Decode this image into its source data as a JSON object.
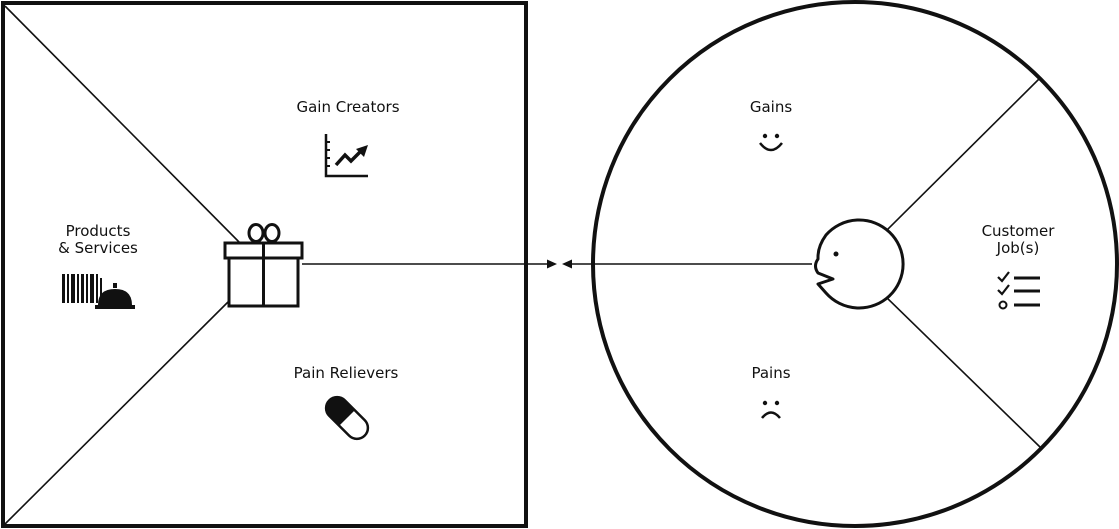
{
  "value_map": {
    "gain_creators": "Gain Creators",
    "products_line1": "Products",
    "products_line2": "& Services",
    "pain_relievers": "Pain Relievers"
  },
  "customer_profile": {
    "gains": "Gains",
    "customer_jobs_line1": "Customer",
    "customer_jobs_line2": "Job(s)",
    "pains": "Pains"
  },
  "icons": {
    "gain_creators": "chart-trend-up-icon",
    "products_services": "barcode-and-cloche-icon",
    "center": "gift-icon",
    "pain_relievers": "pill-icon",
    "gains": "smile-face-icon",
    "pains": "sad-face-icon",
    "customer_jobs": "checklist-icon",
    "customer": "customer-head-icon"
  },
  "colors": {
    "stroke": "#111111",
    "background": "#ffffff"
  }
}
